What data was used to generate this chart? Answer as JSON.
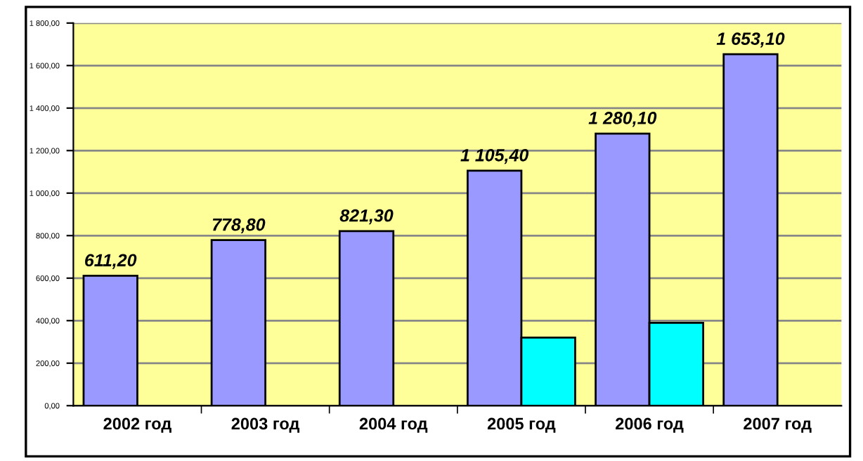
{
  "chart_data": {
    "type": "bar",
    "categories": [
      "2002 год",
      "2003 год",
      "2004 год",
      "2005 год",
      "2006 год",
      "2007 год"
    ],
    "series": [
      {
        "color": "#9999ff",
        "values": [
          611.2,
          778.8,
          821.3,
          1105.4,
          1280.1,
          1653.1
        ],
        "value_labels": [
          "611,20",
          "778,80",
          "821,30",
          "1 105,40",
          "1 280,10",
          "1 653,10"
        ]
      },
      {
        "color": "#00ffff",
        "values": [
          null,
          null,
          null,
          320,
          390,
          null
        ]
      }
    ],
    "ylim": [
      0,
      1800
    ],
    "yticks": [
      {
        "value": 0,
        "label": "0,00"
      },
      {
        "value": 200,
        "label": "200,00"
      },
      {
        "value": 400,
        "label": "400,00"
      },
      {
        "value": 600,
        "label": "600,00"
      },
      {
        "value": 800,
        "label": "800,00"
      },
      {
        "value": 1000,
        "label": "1 000,00"
      },
      {
        "value": 1200,
        "label": "1 200,00"
      },
      {
        "value": 1400,
        "label": "1 400,00"
      },
      {
        "value": 1600,
        "label": "1 600,00"
      },
      {
        "value": 1800,
        "label": "1 800,00"
      }
    ],
    "grid": "y",
    "legend": false
  }
}
